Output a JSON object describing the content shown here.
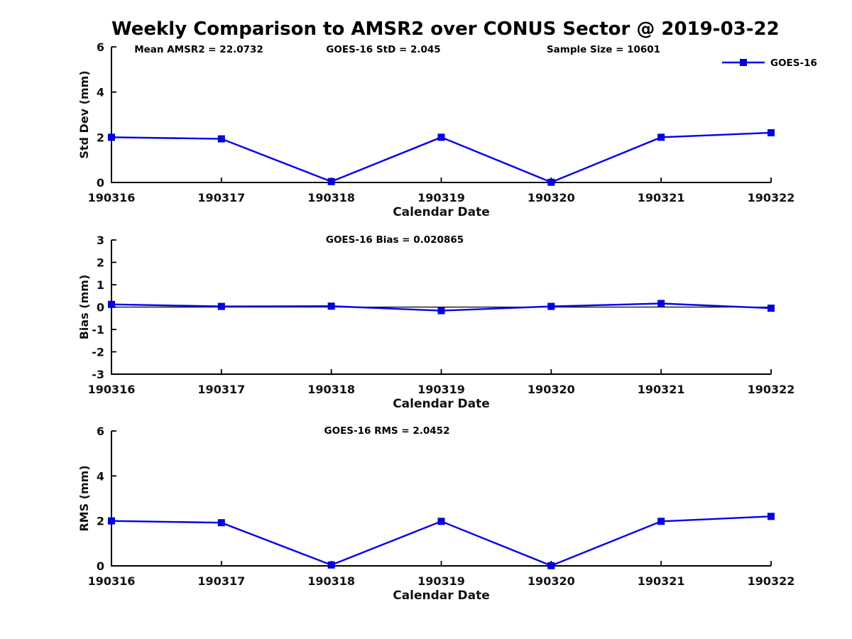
{
  "title": "Weekly Comparison to AMSR2 over CONUS Sector @ 2019-03-22",
  "colors": {
    "series_blue": "#0000ee",
    "marker_edge_blue": "#0000b4",
    "axis_black": "#000000",
    "label_dark": "#111111",
    "background": "#ffffff"
  },
  "legend": {
    "label": "GOES-16",
    "marker": "square",
    "position": "top-right-of-first-panel"
  },
  "xlabel": "Calendar Date",
  "chart_data": [
    {
      "type": "line",
      "panel": "std-dev",
      "title": "",
      "annotations": [
        "Mean AMSR2 = 22.0732",
        "GOES-16 StD = 2.045",
        "Sample Size = 10601"
      ],
      "categories": [
        "190316",
        "190317",
        "190318",
        "190319",
        "190320",
        "190321",
        "190322"
      ],
      "series": [
        {
          "name": "GOES-16",
          "marker": "square",
          "values": [
            2.0,
            1.93,
            0.04,
            2.0,
            0.01,
            2.0,
            2.2
          ]
        }
      ],
      "xlabel": "Calendar Date",
      "ylabel": "Std Dev (mm)",
      "ylim": [
        0,
        6
      ],
      "yticks": [
        0,
        2,
        4,
        6
      ],
      "grid": false,
      "zero_line": false,
      "legend_position": "top-right"
    },
    {
      "type": "line",
      "panel": "bias",
      "title": "",
      "annotations": [
        "GOES-16 Bias  = 0.020865"
      ],
      "categories": [
        "190316",
        "190317",
        "190318",
        "190319",
        "190320",
        "190321",
        "190322"
      ],
      "series": [
        {
          "name": "GOES-16",
          "marker": "square",
          "values": [
            0.12,
            0.03,
            0.04,
            -0.16,
            0.03,
            0.16,
            -0.05
          ]
        }
      ],
      "xlabel": "Calendar Date",
      "ylabel": "Bias (mm)",
      "ylim": [
        -3,
        3
      ],
      "yticks": [
        -3,
        -2,
        -1,
        0,
        1,
        2,
        3
      ],
      "grid": false,
      "zero_line": true,
      "legend_position": "none"
    },
    {
      "type": "line",
      "panel": "rms",
      "title": "",
      "annotations": [
        "GOES-16 RMS = 2.0452"
      ],
      "categories": [
        "190316",
        "190317",
        "190318",
        "190319",
        "190320",
        "190321",
        "190322"
      ],
      "series": [
        {
          "name": "GOES-16",
          "marker": "square",
          "values": [
            2.0,
            1.92,
            0.04,
            1.98,
            0.01,
            1.98,
            2.2
          ]
        }
      ],
      "xlabel": "Calendar Date",
      "ylabel": "RMS (mm)",
      "ylim": [
        0,
        6
      ],
      "yticks": [
        0,
        2,
        4,
        6
      ],
      "grid": false,
      "zero_line": false,
      "legend_position": "none"
    }
  ]
}
